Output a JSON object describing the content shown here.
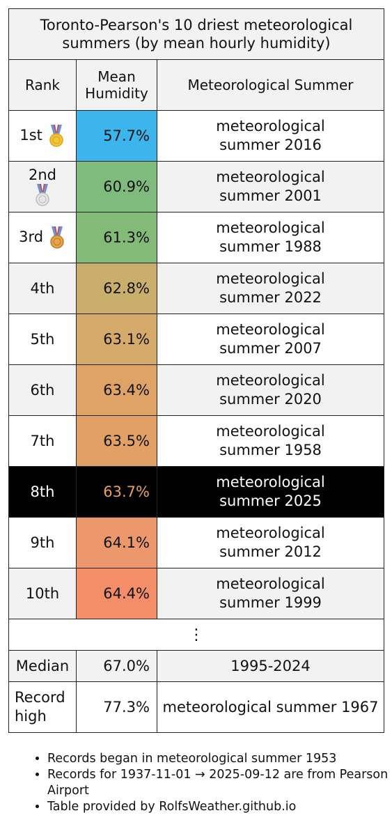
{
  "title": "Toronto-Pearson's 10 driest meteorological summers (by mean hourly humidity)",
  "headers": {
    "rank": "Rank",
    "humidity": "Mean Humidity",
    "summer": "Meteorological Summer"
  },
  "rows": [
    {
      "rank": "1st",
      "medal": "gold-medal-icon",
      "humidity": "57.7%",
      "summer": "meteorological summer 2016",
      "color": "#3cb4ec"
    },
    {
      "rank": "2nd",
      "medal": "silver-medal-icon",
      "humidity": "60.9%",
      "summer": "meteorological summer 2001",
      "color": "#7fbb7c"
    },
    {
      "rank": "3rd",
      "medal": "bronze-medal-icon",
      "humidity": "61.3%",
      "summer": "meteorological summer 1988",
      "color": "#84ba78"
    },
    {
      "rank": "4th",
      "humidity": "62.8%",
      "summer": "meteorological summer 2022",
      "color": "#c9ae6c"
    },
    {
      "rank": "5th",
      "humidity": "63.1%",
      "summer": "meteorological summer 2007",
      "color": "#d6aa6a"
    },
    {
      "rank": "6th",
      "humidity": "63.4%",
      "summer": "meteorological summer 2020",
      "color": "#dfa366"
    },
    {
      "rank": "7th",
      "humidity": "63.5%",
      "summer": "meteorological summer 1958",
      "color": "#e1a165"
    },
    {
      "rank": "8th",
      "humidity": "63.7%",
      "summer": "meteorological summer 2025",
      "color": "#000000",
      "highlight": true
    },
    {
      "rank": "9th",
      "humidity": "64.1%",
      "summer": "meteorological summer 2012",
      "color": "#ed986c"
    },
    {
      "rank": "10th",
      "humidity": "64.4%",
      "summer": "meteorological summer 1999",
      "color": "#f48e68"
    }
  ],
  "ellipsis": "⋮",
  "median": {
    "label": "Median",
    "humidity": "67.0%",
    "period": "1995-2024"
  },
  "record": {
    "label": "Record high",
    "humidity": "77.3%",
    "summer": "meteorological summer 1967"
  },
  "notes": [
    "Records began in meteorological summer 1953",
    "Records for 1937-11-01 → 2025-09-12 are from Pearson Airport",
    "Table provided by RolfsWeather.github.io"
  ]
}
